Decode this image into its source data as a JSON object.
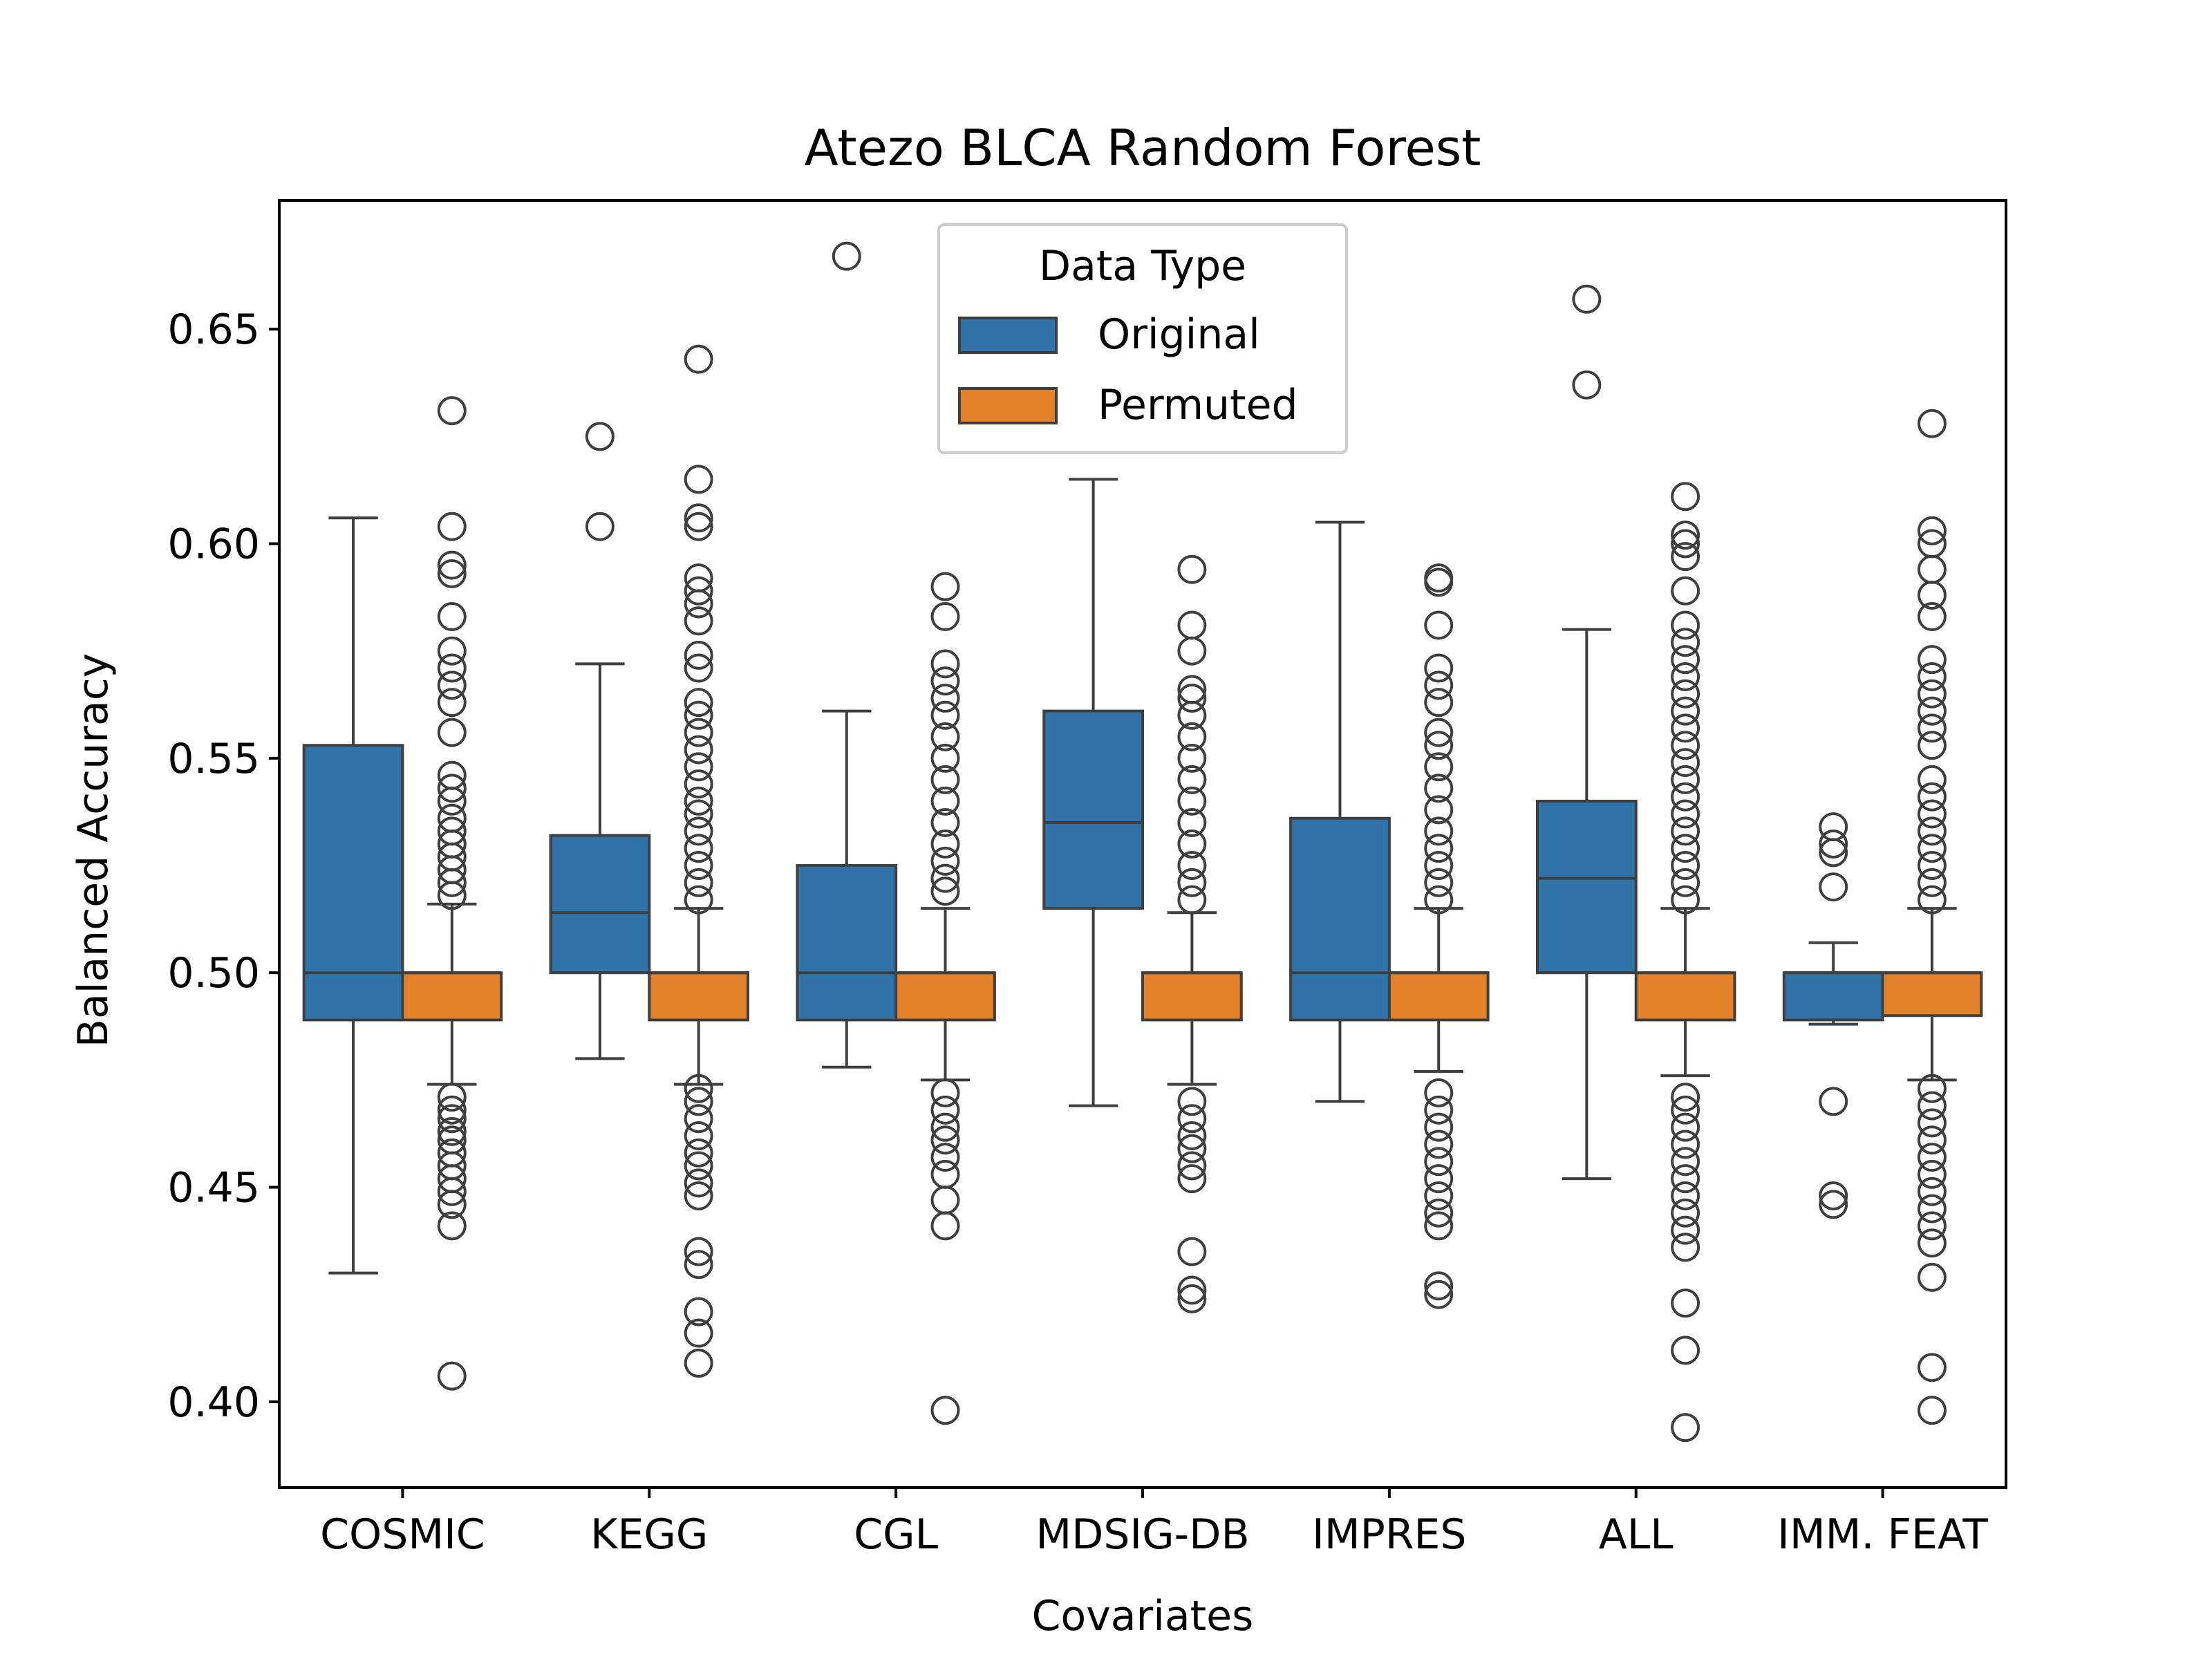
{
  "chart_data": {
    "type": "box",
    "title": "Atezo  BLCA  Random Forest",
    "xlabel": "Covariates",
    "ylabel": "Balanced Accuracy",
    "ylim": [
      0.38,
      0.68
    ],
    "yticks": [
      0.4,
      0.45,
      0.5,
      0.55,
      0.6,
      0.65
    ],
    "ytick_labels": [
      "0.40",
      "0.45",
      "0.50",
      "0.55",
      "0.60",
      "0.65"
    ],
    "categories": [
      "COSMIC",
      "KEGG",
      "CGL",
      "MDSIG-DB",
      "IMPRES",
      "ALL",
      "IMM. FEAT"
    ],
    "grid": false,
    "legend": {
      "title": "Data Type",
      "position": "top-center",
      "entries": [
        "Original",
        "Permuted"
      ]
    },
    "colors": {
      "Original": "#2f73a8",
      "Permuted": "#e4822b",
      "edge": "#3f3f3f"
    },
    "series": [
      {
        "name": "Original",
        "boxes": [
          {
            "whislo": 0.43,
            "q1": 0.489,
            "med": 0.5,
            "q3": 0.553,
            "whishi": 0.606,
            "fliers": []
          },
          {
            "whislo": 0.48,
            "q1": 0.5,
            "med": 0.514,
            "q3": 0.532,
            "whishi": 0.572,
            "fliers": [
              0.604,
              0.625
            ]
          },
          {
            "whislo": 0.478,
            "q1": 0.489,
            "med": 0.5,
            "q3": 0.525,
            "whishi": 0.561,
            "fliers": [
              0.667
            ]
          },
          {
            "whislo": 0.469,
            "q1": 0.515,
            "med": 0.535,
            "q3": 0.561,
            "whishi": 0.615,
            "fliers": []
          },
          {
            "whislo": 0.47,
            "q1": 0.489,
            "med": 0.5,
            "q3": 0.536,
            "whishi": 0.605,
            "fliers": []
          },
          {
            "whislo": 0.452,
            "q1": 0.5,
            "med": 0.522,
            "q3": 0.54,
            "whishi": 0.58,
            "fliers": [
              0.637,
              0.657
            ]
          },
          {
            "whislo": 0.488,
            "q1": 0.489,
            "med": 0.5,
            "q3": 0.5,
            "whishi": 0.507,
            "fliers": [
              0.446,
              0.448,
              0.47,
              0.52,
              0.528,
              0.53,
              0.534
            ]
          }
        ]
      },
      {
        "name": "Permuted",
        "boxes": [
          {
            "whislo": 0.474,
            "q1": 0.489,
            "med": 0.5,
            "q3": 0.5,
            "whishi": 0.516,
            "fliers": [
              0.406,
              0.441,
              0.446,
              0.449,
              0.452,
              0.455,
              0.458,
              0.461,
              0.463,
              0.466,
              0.468,
              0.471,
              0.518,
              0.521,
              0.524,
              0.527,
              0.53,
              0.533,
              0.536,
              0.54,
              0.543,
              0.546,
              0.556,
              0.563,
              0.567,
              0.571,
              0.575,
              0.583,
              0.593,
              0.595,
              0.604,
              0.631
            ]
          },
          {
            "whislo": 0.474,
            "q1": 0.489,
            "med": 0.5,
            "q3": 0.5,
            "whishi": 0.515,
            "fliers": [
              0.409,
              0.416,
              0.421,
              0.432,
              0.435,
              0.448,
              0.451,
              0.455,
              0.458,
              0.462,
              0.466,
              0.47,
              0.473,
              0.517,
              0.521,
              0.525,
              0.529,
              0.533,
              0.537,
              0.54,
              0.544,
              0.548,
              0.552,
              0.556,
              0.56,
              0.563,
              0.571,
              0.574,
              0.582,
              0.586,
              0.589,
              0.592,
              0.604,
              0.606,
              0.615,
              0.643
            ]
          },
          {
            "whislo": 0.475,
            "q1": 0.489,
            "med": 0.5,
            "q3": 0.5,
            "whishi": 0.515,
            "fliers": [
              0.398,
              0.441,
              0.447,
              0.453,
              0.457,
              0.461,
              0.464,
              0.468,
              0.472,
              0.519,
              0.522,
              0.526,
              0.53,
              0.535,
              0.54,
              0.545,
              0.55,
              0.555,
              0.56,
              0.564,
              0.568,
              0.572,
              0.583,
              0.59
            ]
          },
          {
            "whislo": 0.474,
            "q1": 0.489,
            "med": 0.5,
            "q3": 0.5,
            "whishi": 0.514,
            "fliers": [
              0.424,
              0.426,
              0.435,
              0.452,
              0.455,
              0.459,
              0.462,
              0.466,
              0.47,
              0.517,
              0.521,
              0.525,
              0.53,
              0.535,
              0.54,
              0.545,
              0.55,
              0.555,
              0.56,
              0.564,
              0.566,
              0.575,
              0.581,
              0.594
            ]
          },
          {
            "whislo": 0.477,
            "q1": 0.489,
            "med": 0.5,
            "q3": 0.5,
            "whishi": 0.515,
            "fliers": [
              0.425,
              0.427,
              0.441,
              0.444,
              0.448,
              0.452,
              0.456,
              0.46,
              0.464,
              0.468,
              0.472,
              0.517,
              0.521,
              0.525,
              0.529,
              0.533,
              0.538,
              0.543,
              0.548,
              0.553,
              0.556,
              0.563,
              0.567,
              0.571,
              0.581,
              0.591,
              0.592
            ]
          },
          {
            "whislo": 0.476,
            "q1": 0.489,
            "med": 0.5,
            "q3": 0.5,
            "whishi": 0.515,
            "fliers": [
              0.394,
              0.412,
              0.423,
              0.436,
              0.44,
              0.444,
              0.448,
              0.452,
              0.456,
              0.46,
              0.464,
              0.468,
              0.471,
              0.517,
              0.521,
              0.525,
              0.529,
              0.533,
              0.537,
              0.541,
              0.545,
              0.549,
              0.553,
              0.557,
              0.561,
              0.565,
              0.569,
              0.573,
              0.577,
              0.581,
              0.589,
              0.597,
              0.6,
              0.602,
              0.611
            ]
          },
          {
            "whislo": 0.475,
            "q1": 0.49,
            "med": 0.5,
            "q3": 0.5,
            "whishi": 0.515,
            "fliers": [
              0.398,
              0.408,
              0.429,
              0.437,
              0.441,
              0.445,
              0.449,
              0.453,
              0.457,
              0.461,
              0.465,
              0.469,
              0.473,
              0.517,
              0.521,
              0.525,
              0.529,
              0.533,
              0.537,
              0.541,
              0.545,
              0.553,
              0.557,
              0.561,
              0.565,
              0.569,
              0.573,
              0.583,
              0.588,
              0.594,
              0.6,
              0.603,
              0.628
            ]
          }
        ]
      }
    ]
  }
}
